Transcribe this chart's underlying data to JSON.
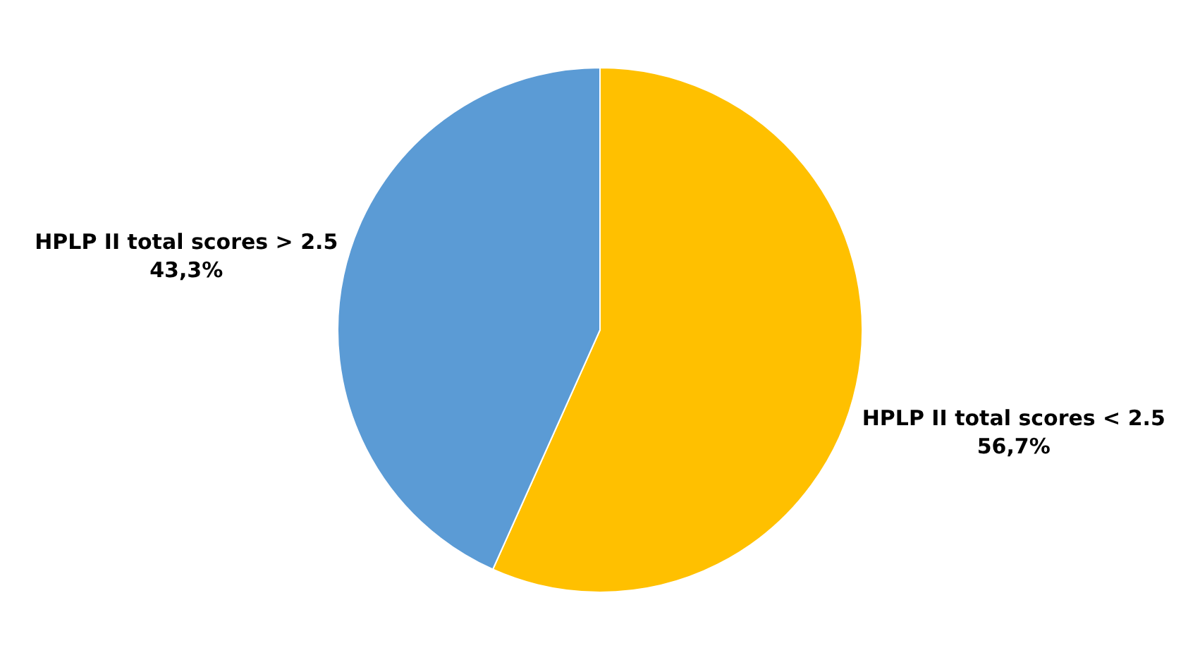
{
  "chart_data": {
    "type": "pie",
    "categories": [
      "HPLP II total scores < 2.5",
      "HPLP II total scores > 2.5"
    ],
    "values": [
      56.7,
      43.3
    ],
    "colors": [
      "#ffc000",
      "#5b9bd5"
    ],
    "value_labels": [
      "56,7%",
      "43,3%"
    ]
  }
}
